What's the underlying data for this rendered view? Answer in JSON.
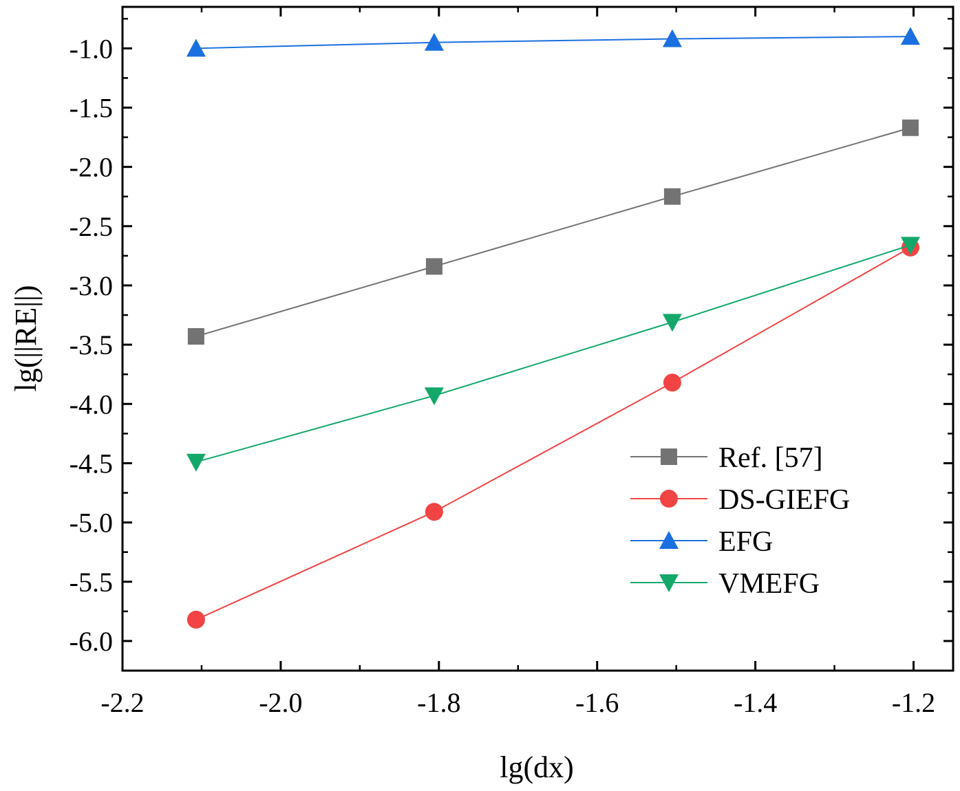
{
  "chart_data": {
    "type": "line",
    "title": "",
    "xlabel": "lg(dx)",
    "ylabel": "lg(||RE||)",
    "xlim": [
      -2.2,
      -1.15
    ],
    "ylim": [
      -6.25,
      -0.65
    ],
    "x_ticks": [
      -2.2,
      -2.0,
      -1.8,
      -1.6,
      -1.4,
      -1.2
    ],
    "x_tick_labels": [
      "-2.2",
      "-2.0",
      "-1.8",
      "-1.6",
      "-1.4",
      "-1.2"
    ],
    "y_ticks": [
      -1.0,
      -1.5,
      -2.0,
      -2.5,
      -3.0,
      -3.5,
      -4.0,
      -4.5,
      -5.0,
      -5.5,
      -6.0
    ],
    "y_tick_labels": [
      "-1.0",
      "-1.5",
      "-2.0",
      "-2.5",
      "-3.0",
      "-3.5",
      "-4.0",
      "-4.5",
      "-5.0",
      "-5.5",
      "-6.0"
    ],
    "grid": false,
    "legend_position": "lower-right",
    "x": [
      -2.107,
      -1.806,
      -1.505,
      -1.204
    ],
    "series": [
      {
        "name": "Ref. [57]",
        "values": [
          -3.43,
          -2.84,
          -2.25,
          -1.67
        ],
        "color": "#737373",
        "marker": "square"
      },
      {
        "name": "DS-GIEFG",
        "values": [
          -5.82,
          -4.91,
          -3.82,
          -2.68
        ],
        "color": "#f24444",
        "marker": "circle"
      },
      {
        "name": "EFG",
        "values": [
          -1.0,
          -0.95,
          -0.92,
          -0.9
        ],
        "color": "#1a70e0",
        "marker": "triangle-up"
      },
      {
        "name": "VMEFG",
        "values": [
          -4.49,
          -3.93,
          -3.31,
          -2.66
        ],
        "color": "#13a86a",
        "marker": "triangle-down"
      }
    ]
  }
}
